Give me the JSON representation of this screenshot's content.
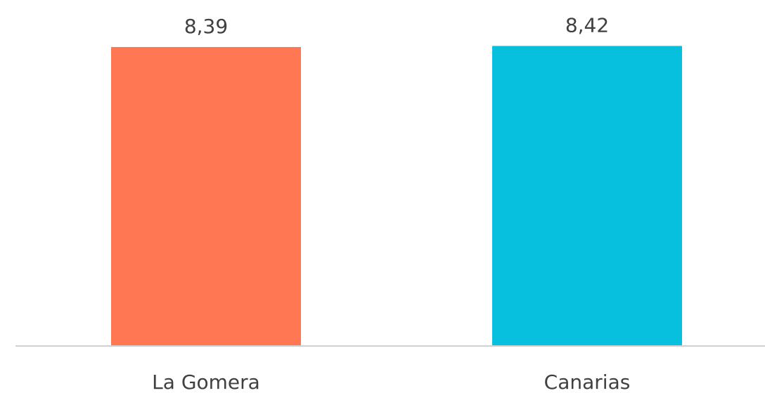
{
  "chart_data": {
    "type": "bar",
    "categories": [
      "La Gomera",
      "Canarias"
    ],
    "values": [
      8.39,
      8.42
    ],
    "value_labels": [
      "8,39",
      "8,42"
    ],
    "colors": [
      "#ff7753",
      "#06c0de"
    ],
    "ylim": [
      0,
      9
    ]
  }
}
